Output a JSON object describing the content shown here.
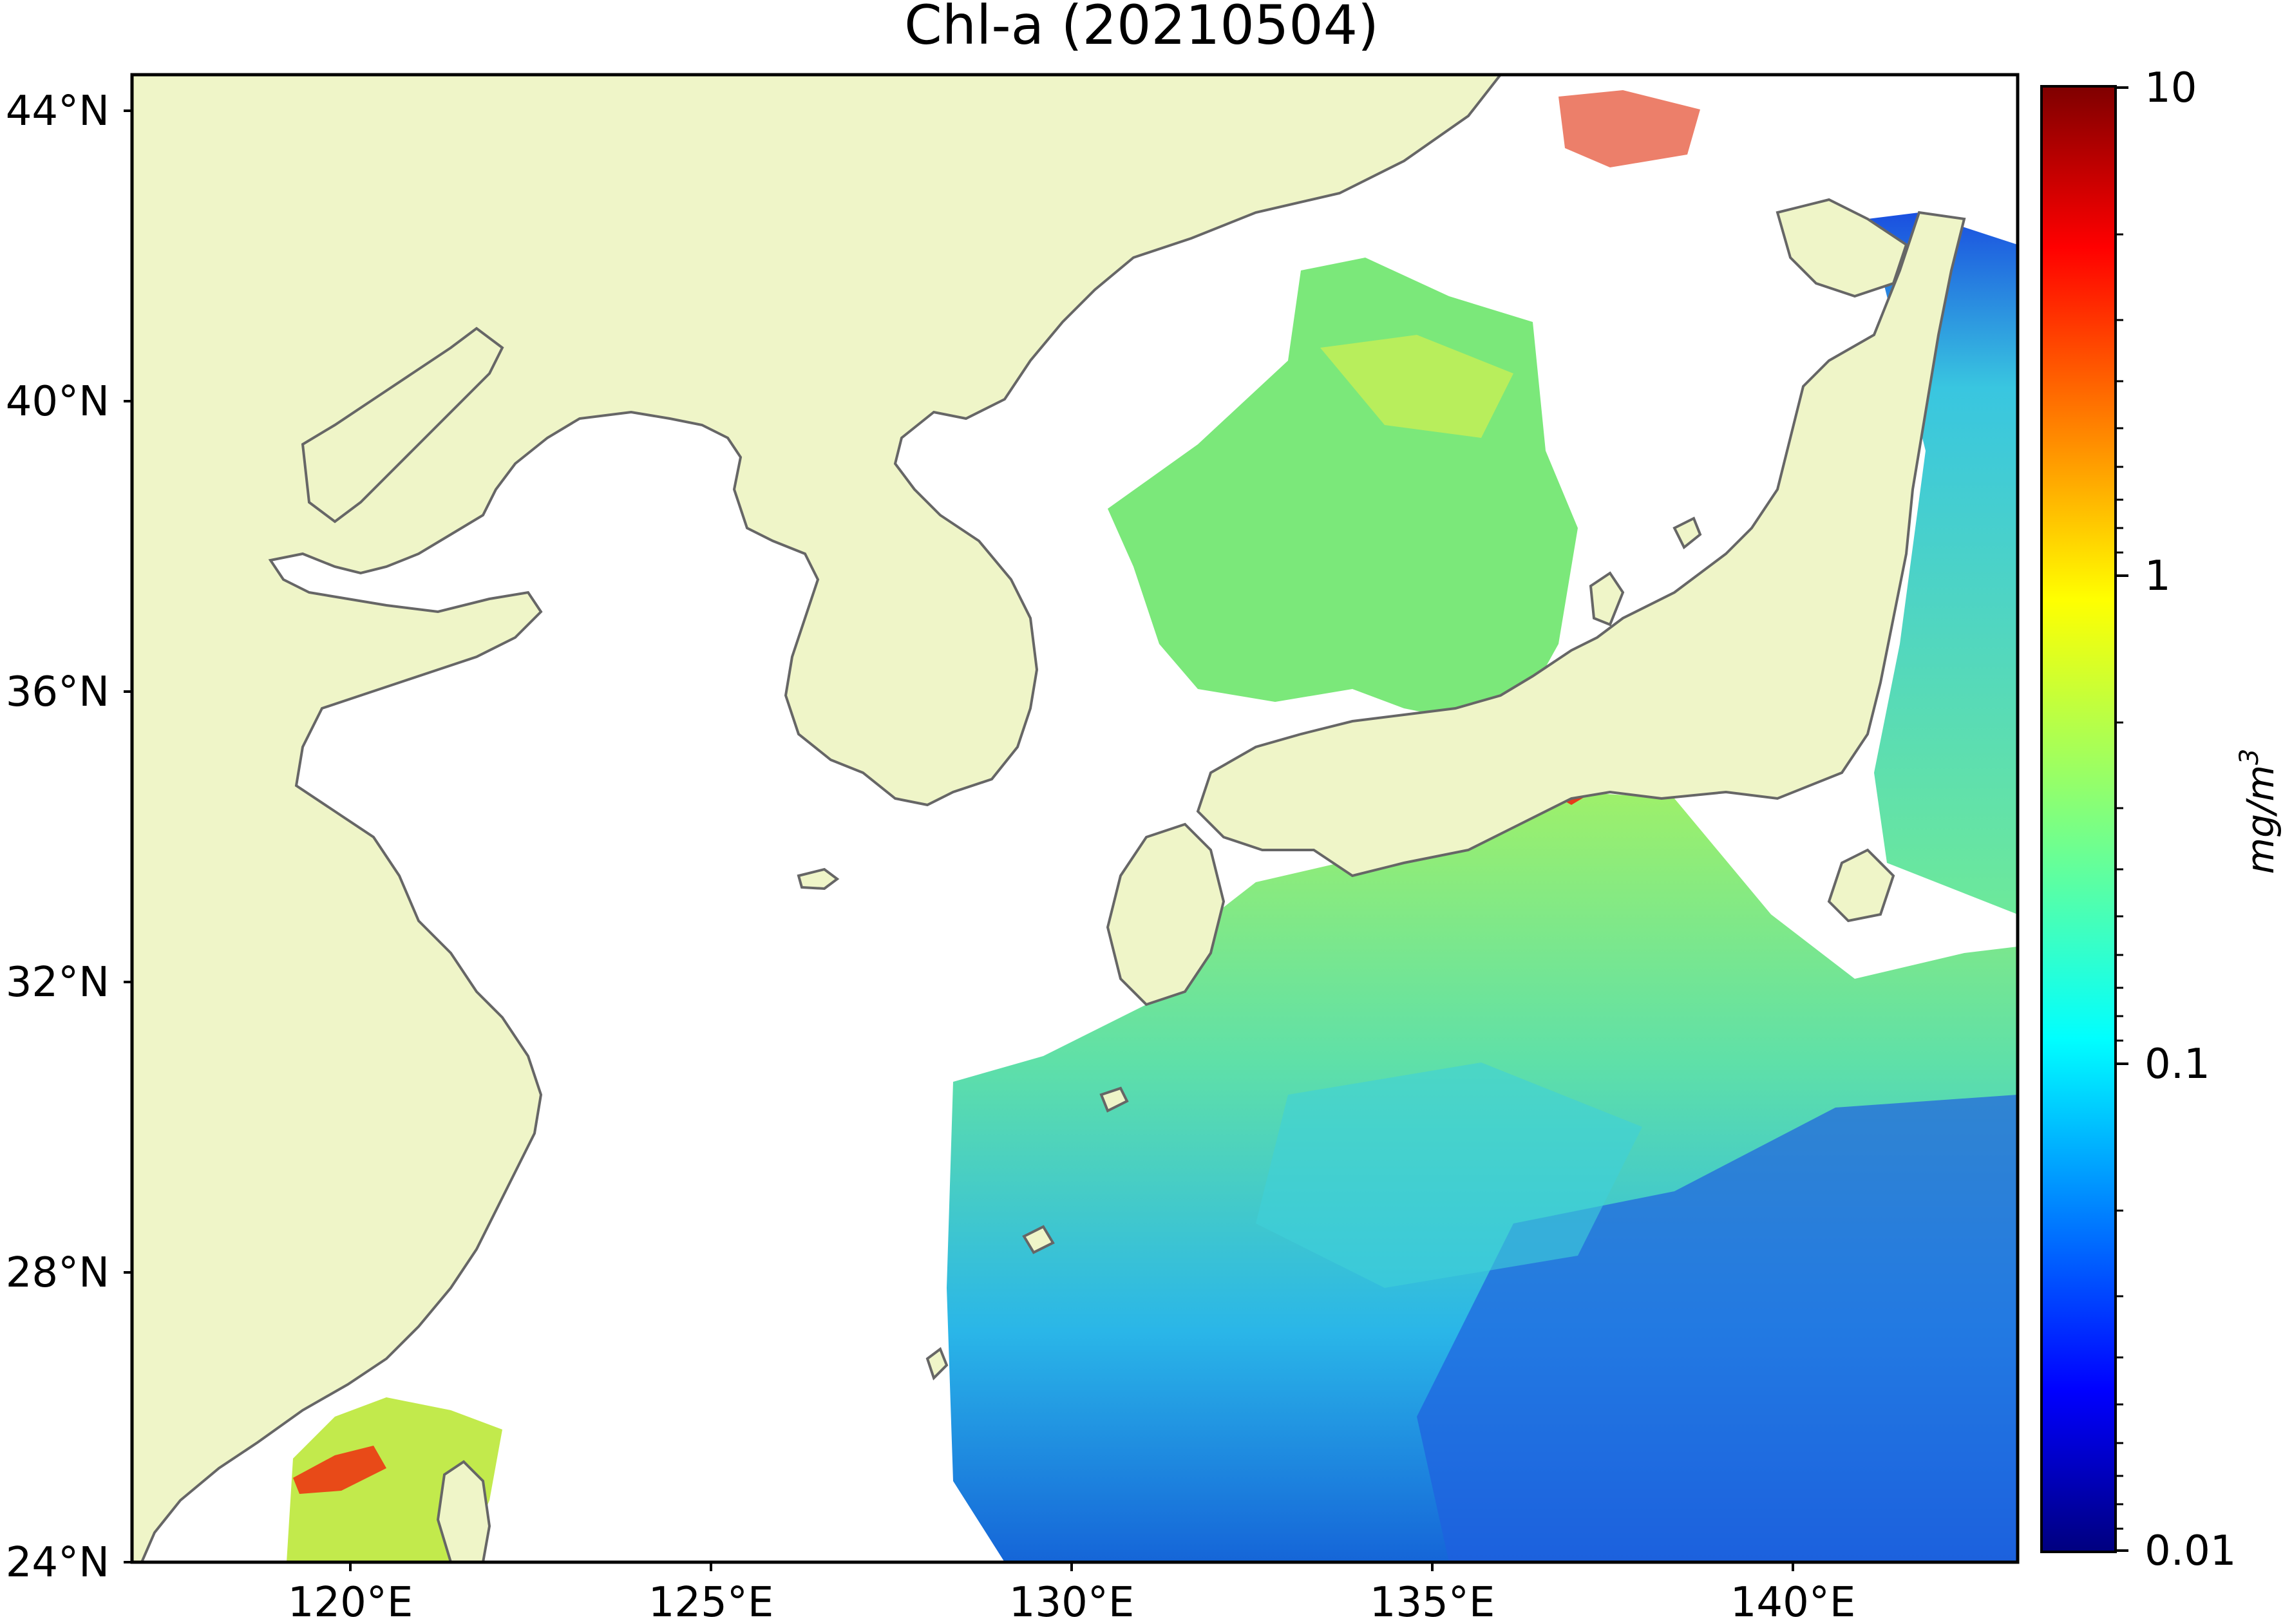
{
  "title": "Chl-a (20210504)",
  "map": {
    "lon_ticks": [
      "120°E",
      "125°E",
      "130°E",
      "135°E",
      "140°E"
    ],
    "lat_ticks": [
      "44°N",
      "40°N",
      "36°N",
      "32°N",
      "28°N",
      "24°N"
    ],
    "land_color": "#eff5c8",
    "coast_color": "#666666",
    "no_data_color": "#ffffff"
  },
  "colorbar": {
    "ticks": [
      "10",
      "1",
      "0.1",
      "0.01"
    ],
    "units_main": "mg/m",
    "units_exp": "3",
    "colormap": "jet",
    "scale": "log"
  }
}
